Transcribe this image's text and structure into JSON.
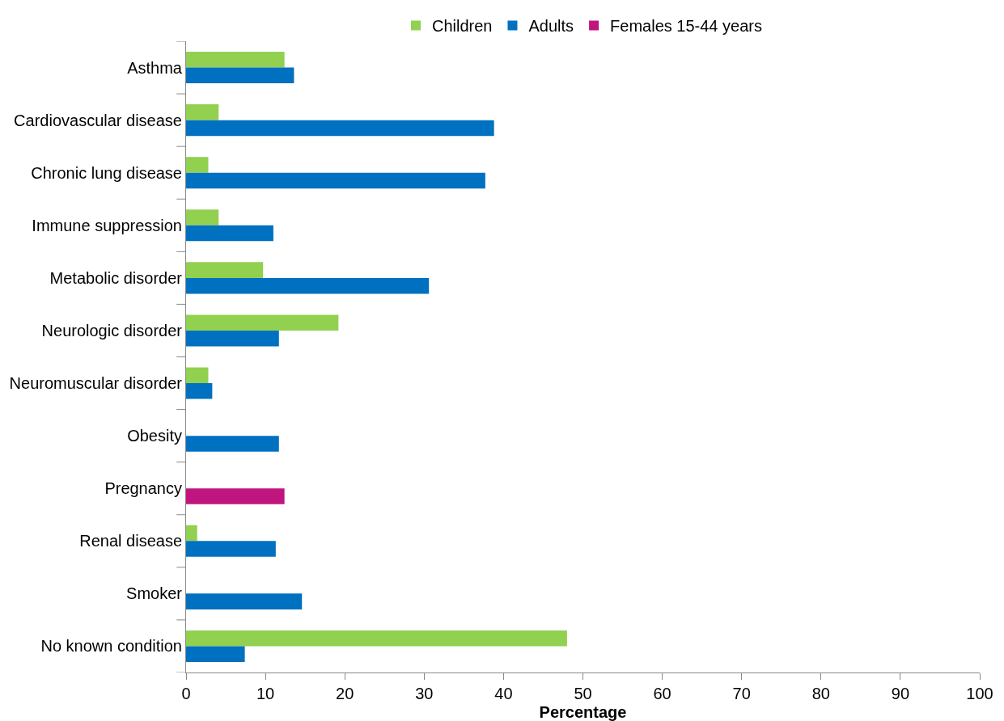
{
  "chart_data": {
    "type": "bar",
    "orientation": "horizontal",
    "xlabel": "Percentage",
    "categories": [
      "Asthma",
      "Cardiovascular disease",
      "Chronic lung disease",
      "Immune suppression",
      "Metabolic disorder",
      "Neurologic disorder",
      "Neuromuscular disorder",
      "Obesity",
      "Pregnancy",
      "Renal disease",
      "Smoker",
      "No known condition"
    ],
    "series": [
      {
        "name": "Children",
        "color": "#92d050",
        "values": [
          12.4,
          4.1,
          2.8,
          4.1,
          9.7,
          19.2,
          2.8,
          null,
          null,
          1.4,
          null,
          48.0
        ]
      },
      {
        "name": "Adults",
        "color": "#0070c0",
        "values": [
          13.6,
          38.8,
          37.7,
          11.0,
          30.6,
          11.7,
          3.3,
          11.7,
          null,
          11.3,
          14.6,
          7.4
        ]
      },
      {
        "name": "Females 15-44 years",
        "color": "#c0157f",
        "values": [
          null,
          null,
          null,
          null,
          null,
          null,
          null,
          null,
          12.4,
          null,
          null,
          null
        ]
      }
    ],
    "xlim": [
      0,
      100
    ],
    "xticks": [
      0,
      10,
      20,
      30,
      40,
      50,
      60,
      70,
      80,
      90,
      100
    ],
    "grid": false,
    "legend": "top"
  }
}
